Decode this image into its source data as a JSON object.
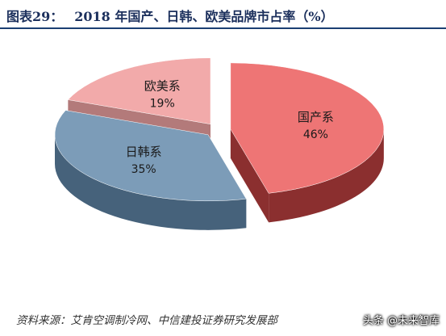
{
  "header": {
    "figure_label": "图表29：",
    "title": "2018 年国产、日韩、欧美品牌市占率（%）"
  },
  "chart_data": {
    "type": "pie",
    "style": "3d-exploded",
    "title": "2018 年国产、日韩、欧美品牌市占率（%）",
    "slices": [
      {
        "label": "国产系",
        "value": 46,
        "display": "46%",
        "color": "#ee7575",
        "side_color": "#8b2f2f"
      },
      {
        "label": "日韩系",
        "value": 35,
        "display": "35%",
        "color": "#7c9cb8",
        "side_color": "#46627b"
      },
      {
        "label": "欧美系",
        "value": 19,
        "display": "19%",
        "color": "#f2aaaa",
        "side_color": "#b37a7a"
      }
    ],
    "legend": "none"
  },
  "footer": {
    "source": "资料来源：艾肯空调制冷网、中信建投证券研究发展部",
    "watermark": "头条 @未来智库"
  }
}
